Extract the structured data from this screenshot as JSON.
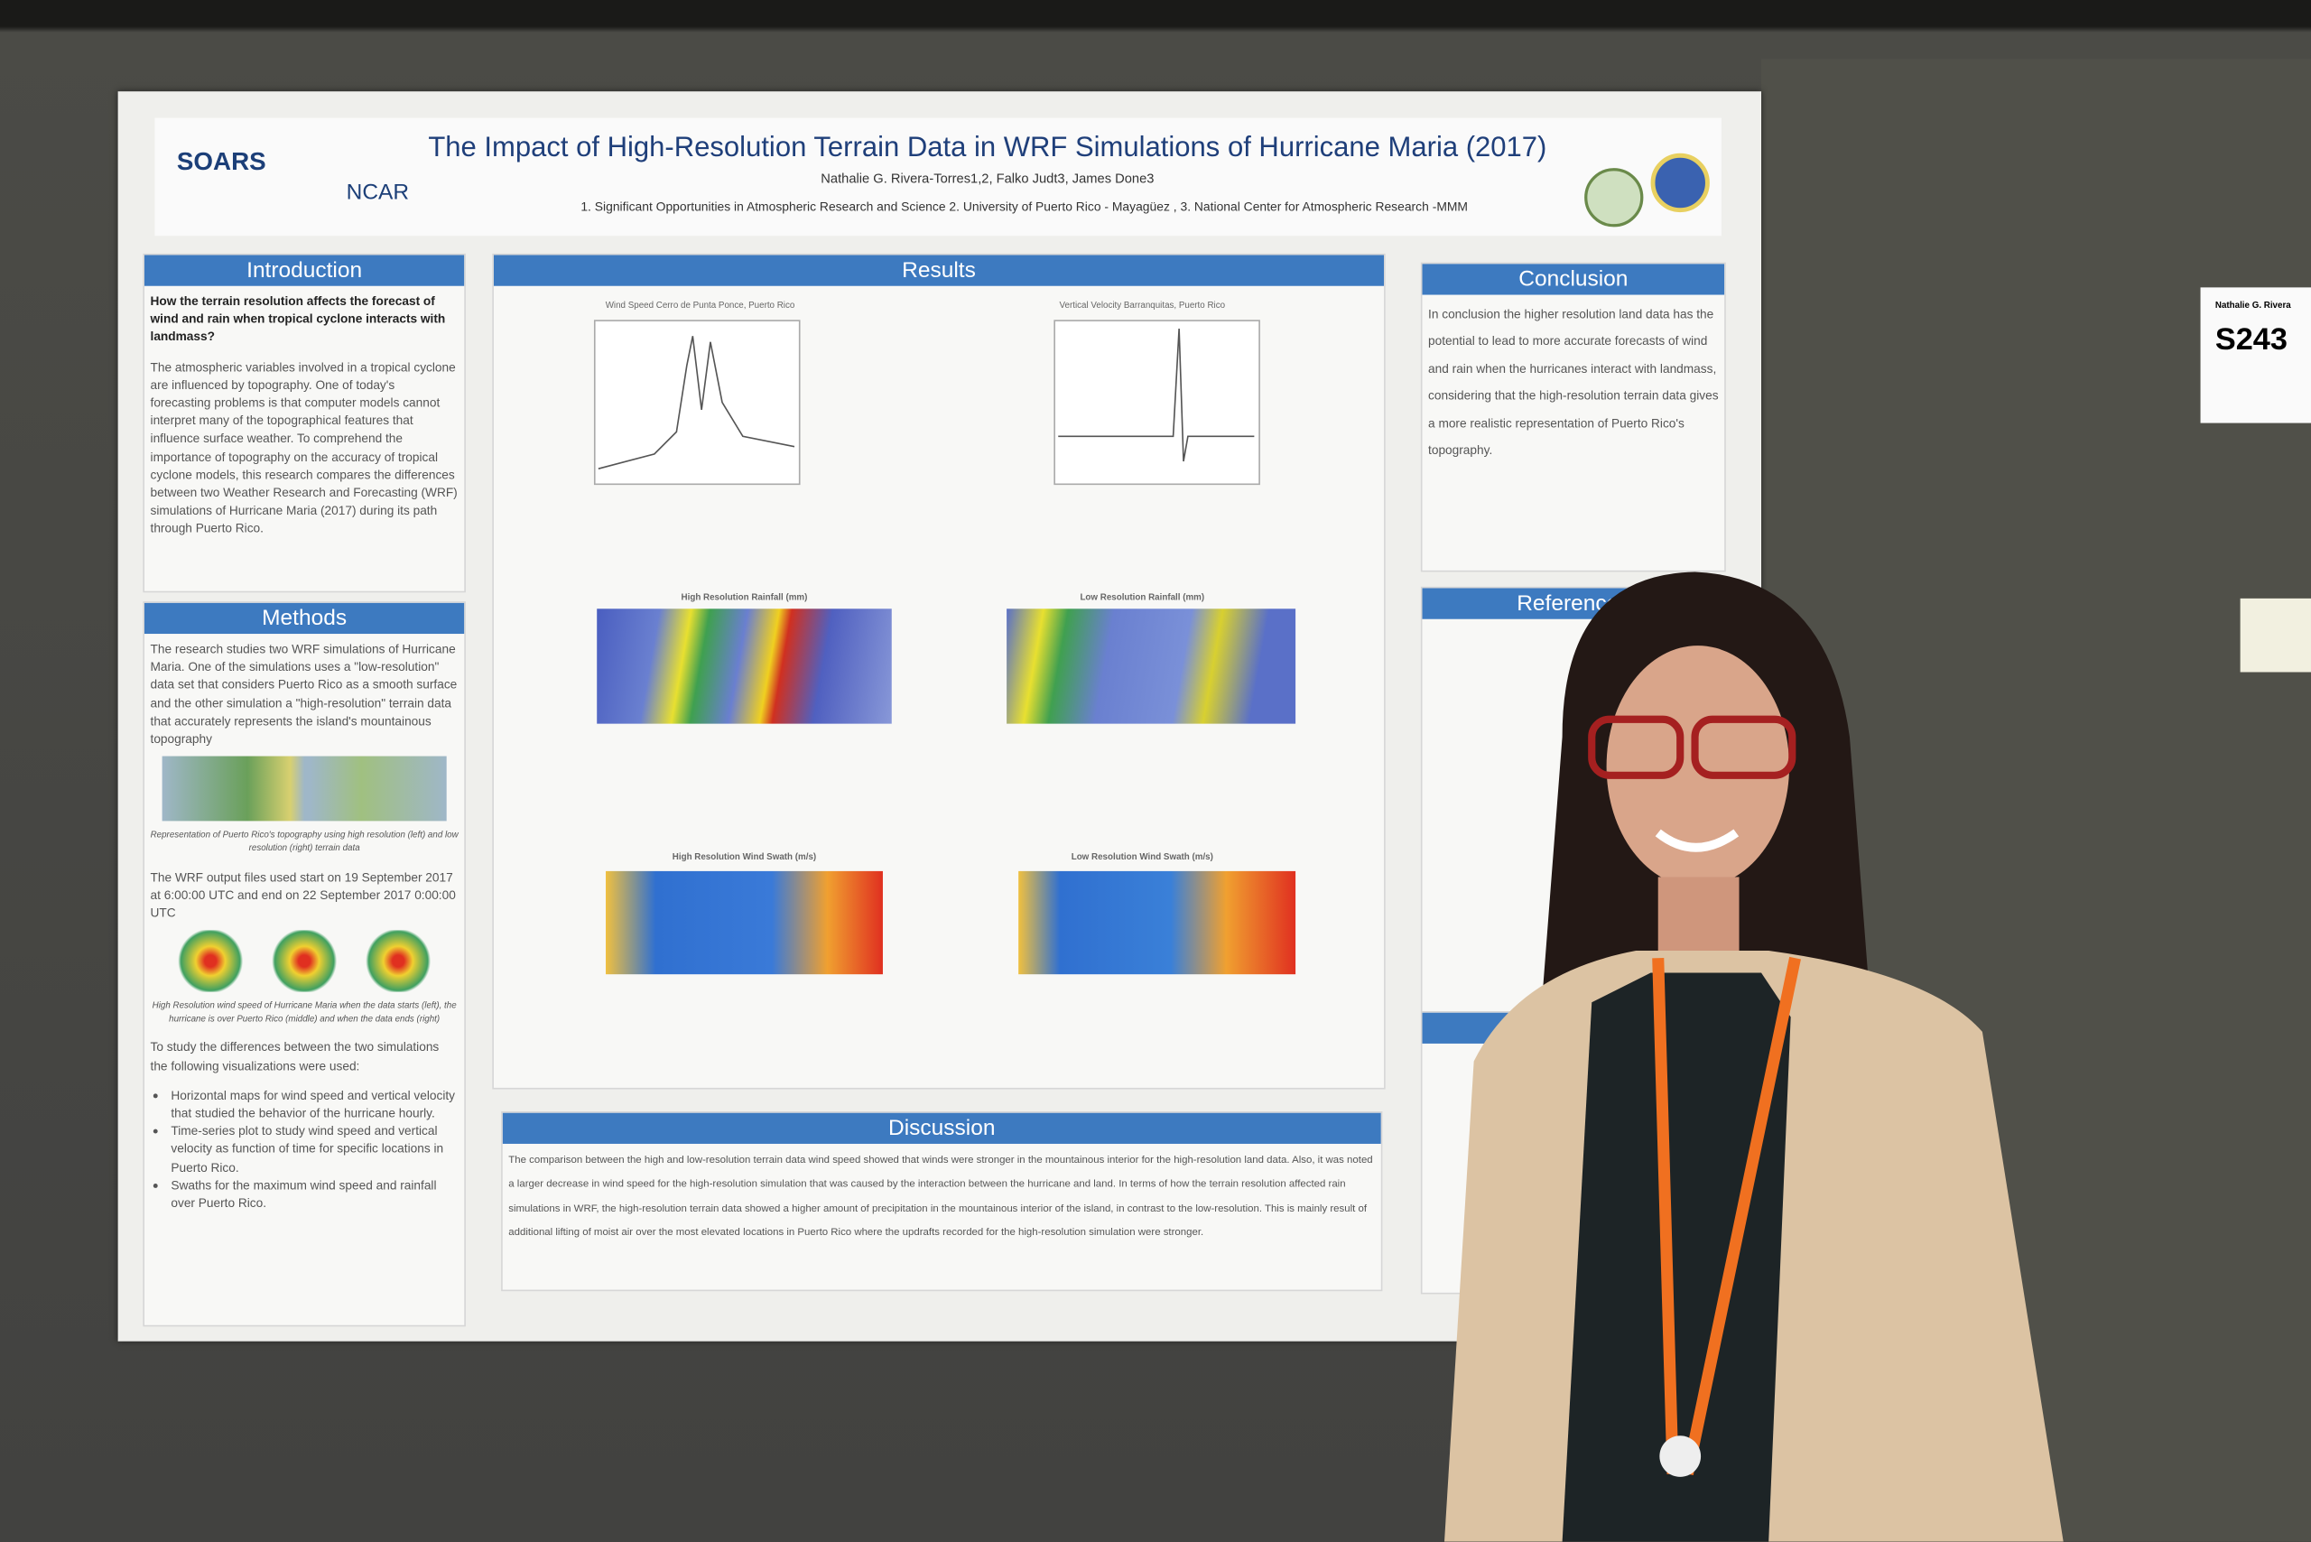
{
  "header": {
    "title": "The Impact of High-Resolution Terrain Data in WRF Simulations of Hurricane Maria (2017)",
    "authors": "Nathalie G. Rivera-Torres1,2, Falko Judt3, James Done3",
    "affiliations": "1. Significant Opportunities in Atmospheric Research and Science 2. University of Puerto Rico - Mayagüez , 3. National Center for Atmospheric Research -MMM",
    "logos": [
      "SOARS",
      "NCAR"
    ]
  },
  "introduction": {
    "heading": "Introduction",
    "question": "How the terrain resolution affects the forecast of wind and rain when tropical cyclone interacts with landmass?",
    "body": "The atmospheric variables involved in a tropical cyclone are influenced by topography. One of today's forecasting problems is that computer models cannot interpret many of the topographical features that influence surface weather. To comprehend the importance of topography on the accuracy of tropical cyclone models, this research compares the differences between two Weather Research and Forecasting (WRF) simulations of Hurricane Maria (2017) during its path through Puerto Rico."
  },
  "methods": {
    "heading": "Methods",
    "body1": "The research studies two WRF simulations of Hurricane Maria. One of the simulations uses a \"low-resolution\" data set that considers Puerto Rico as a smooth surface and the other simulation a \"high-resolution\" terrain data that accurately represents the island's mountainous topography",
    "caption1": "Representation of Puerto Rico's topography using high resolution (left) and low resolution (right) terrain data",
    "body2": "The WRF output files used start on 19 September 2017 at 6:00:00 UTC and end on 22 September 2017 0:00:00 UTC",
    "caption2": "High Resolution wind speed of Hurricane Maria when the data starts (left), the hurricane is over Puerto Rico (middle) and when the data ends (right)",
    "body3": "To study the differences between the two simulations the following visualizations were used:",
    "bullets": [
      "Horizontal maps for wind speed and vertical velocity that studied the behavior of the hurricane hourly.",
      "Time-series plot to study wind speed and vertical velocity as function of time for specific locations in Puerto Rico.",
      "Swaths for the maximum wind speed and rainfall over Puerto Rico."
    ]
  },
  "results": {
    "heading": "Results",
    "figures": [
      "Wind Speed Cerro de Punta Ponce, Puerto Rico",
      "Vertical Velocity Barranquitas, Puerto Rico",
      "High Resolution Rainfall (mm)",
      "Low Resolution Rainfall (mm)",
      "High Resolution Wind Swath (m/s)",
      "Low Resolution Wind Swath (m/s)"
    ]
  },
  "discussion": {
    "heading": "Discussion",
    "body": "The comparison between the high and low-resolution terrain data wind speed showed that winds were stronger in the mountainous interior for the high-resolution land data. Also, it was noted a larger decrease in wind speed for the high-resolution simulation that was caused by the interaction between the hurricane and land. In terms of how the terrain resolution affected rain simulations in WRF, the high-resolution terrain data showed a higher amount of precipitation in the mountainous interior of the island, in contrast to the low-resolution. This is mainly result of additional lifting of moist air over the most elevated locations in Puerto Rico where the updrafts recorded for the high-resolution simulation were stronger."
  },
  "conclusion": {
    "heading": "Conclusion",
    "body": "In conclusion the higher resolution land data has the potential to lead to more accurate forecasts of wind and rain when the hurricanes interact with landmass, considering that the high-resolution terrain data gives a more realistic representation of Puerto Rico's topography."
  },
  "references": {
    "heading": "References"
  },
  "sign": {
    "name": "Nathalie G. Rivera",
    "number": "S243"
  }
}
